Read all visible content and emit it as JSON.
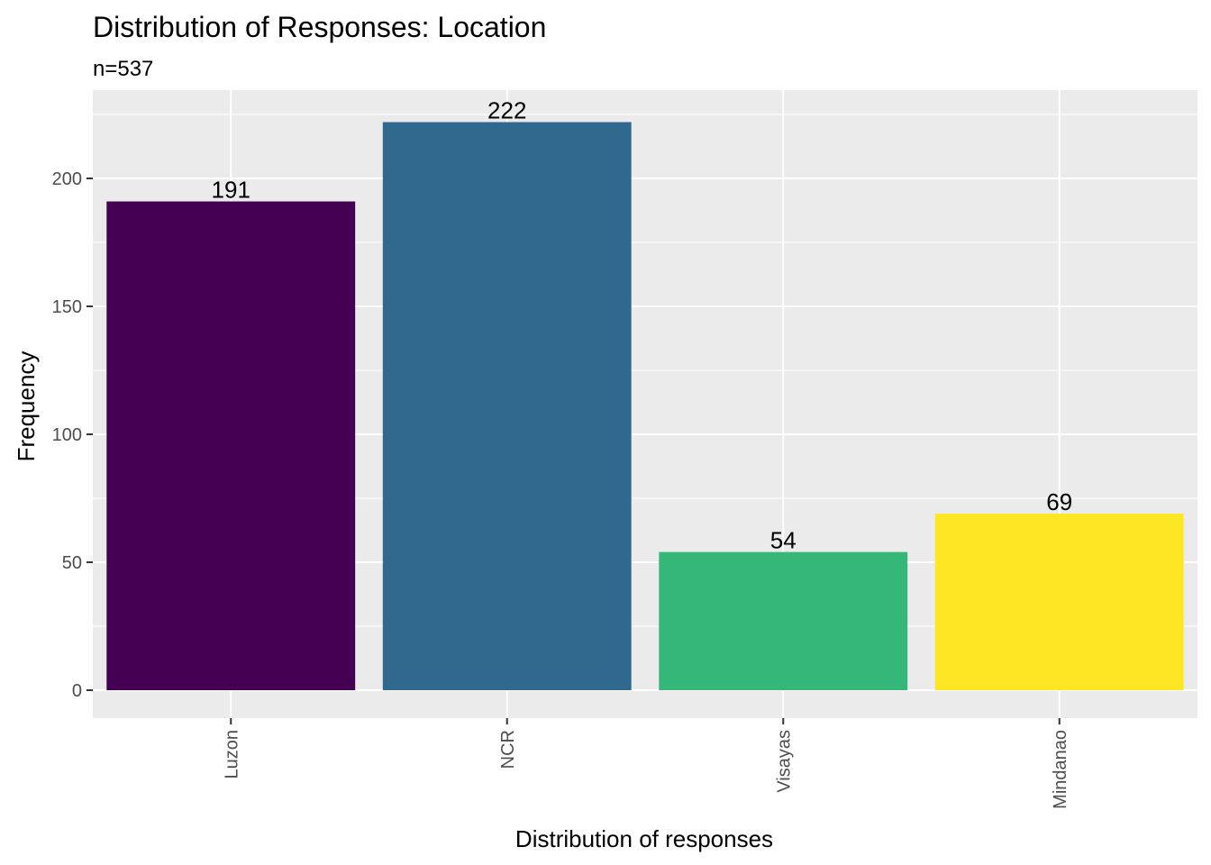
{
  "chart_data": {
    "type": "bar",
    "title": "Distribution of Responses: Location",
    "subtitle": "n=537",
    "xlabel": "Distribution of responses",
    "ylabel": "Frequency",
    "categories": [
      "Luzon",
      "NCR",
      "Visayas",
      "Mindanao"
    ],
    "values": [
      191,
      222,
      54,
      69
    ],
    "colors": [
      "#440154",
      "#31688E",
      "#35B779",
      "#FDE725"
    ],
    "ylim": [
      0,
      233
    ],
    "y_ticks": [
      0,
      50,
      100,
      150,
      200
    ],
    "y_tick_labels": [
      "0",
      "50",
      "100",
      "150",
      "200"
    ],
    "x_tick_rotation": "vertical",
    "grid": true,
    "background": "#EBEBEB",
    "legend": "none"
  }
}
